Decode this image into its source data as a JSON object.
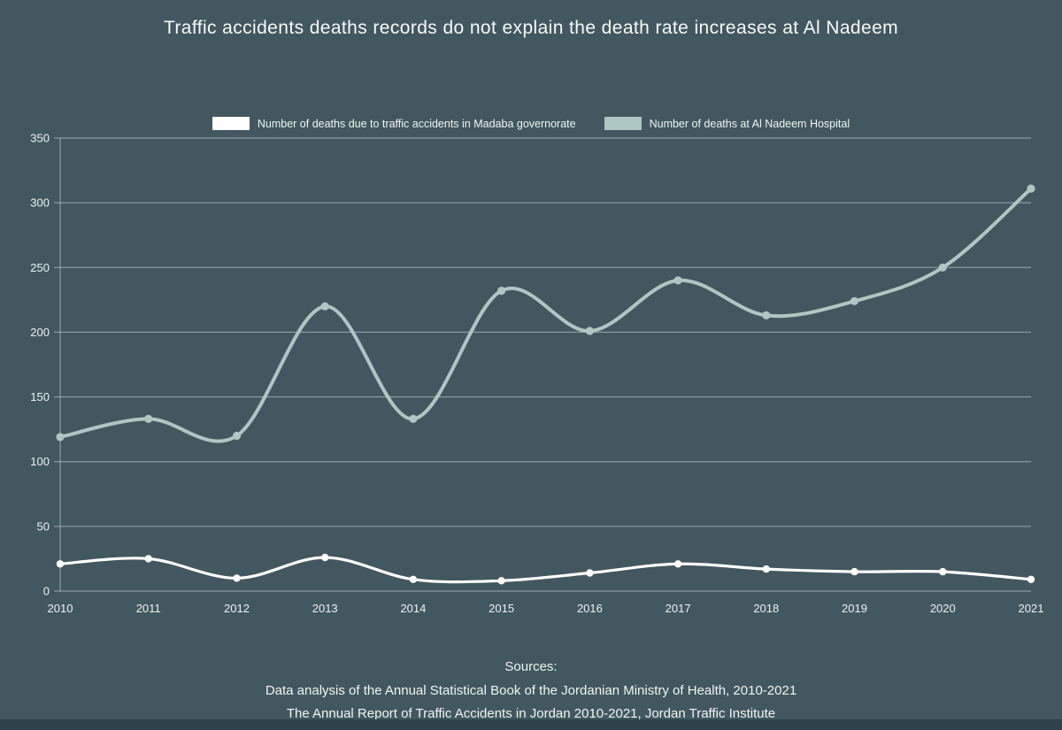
{
  "title": "Traffic accidents deaths records do not explain the death rate increases at Al Nadeem",
  "legend": [
    {
      "label": "Number of deaths due to traffic accidents in Madaba governorate",
      "color": "#ffffff"
    },
    {
      "label": "Number of deaths at Al Nadeem Hospital",
      "color": "#aec7c4"
    }
  ],
  "sources": {
    "heading": "Sources:",
    "line1": "Data analysis of the Annual Statistical Book of the Jordanian Ministry of Health, 2010-2021",
    "line2": "The Annual Report of Traffic Accidents in Jordan 2010-2021, Jordan Traffic Institute"
  },
  "chart_data": {
    "type": "line",
    "title": "Traffic accidents deaths records do not explain the death rate increases at Al Nadeem",
    "x": [
      2010,
      2011,
      2012,
      2013,
      2014,
      2015,
      2016,
      2017,
      2018,
      2019,
      2020,
      2021
    ],
    "series": [
      {
        "name": "Number of deaths due to traffic accidents in Madaba governorate",
        "color": "#ffffff",
        "values": [
          21,
          25,
          10,
          26,
          9,
          8,
          14,
          21,
          17,
          15,
          15,
          9
        ]
      },
      {
        "name": "Number of deaths at Al Nadeem Hospital",
        "color": "#aec7c4",
        "values": [
          119,
          133,
          120,
          220,
          133,
          232,
          201,
          240,
          213,
          224,
          250,
          311
        ]
      }
    ],
    "xlabel": "",
    "ylabel": "",
    "ylim": [
      0,
      350
    ],
    "yticks": [
      0,
      50,
      100,
      150,
      200,
      250,
      300,
      350
    ],
    "grid": true,
    "curve": "smooth",
    "markers": true,
    "legend_position": "top"
  },
  "colors": {
    "background": "#42575f",
    "grid": "#ccd6d8",
    "axis_text": "#eef3f4",
    "footer_strip": "#2f424b"
  }
}
